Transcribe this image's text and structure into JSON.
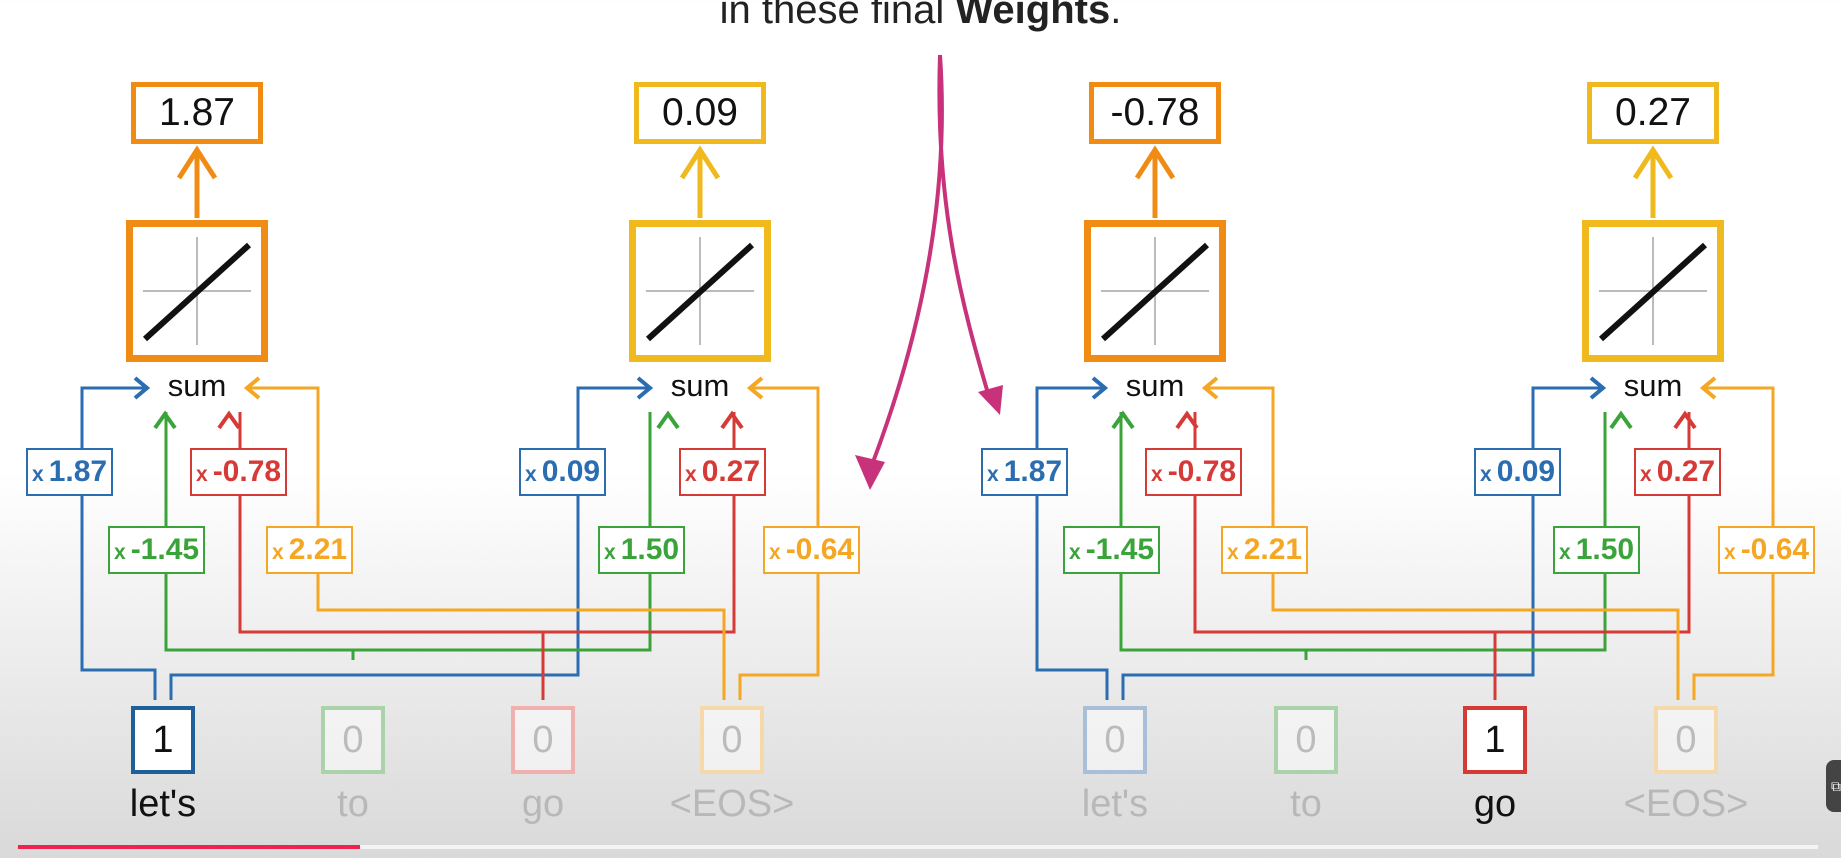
{
  "caption": {
    "prefix": "in these final ",
    "bold": "Weights",
    "suffix": "."
  },
  "colors": {
    "blue": "#2a6db0",
    "green": "#3aa33a",
    "red": "#d63a36",
    "orange": "#f5a623",
    "dark_orange": "#f08c14",
    "gold": "#f0b91e",
    "magenta": "#c8327a"
  },
  "outputs": [
    {
      "value": "1.87",
      "color": "#f08c14"
    },
    {
      "value": "0.09",
      "color": "#f0b91e"
    },
    {
      "value": "-0.78",
      "color": "#f08c14"
    },
    {
      "value": "0.27",
      "color": "#f0b91e"
    }
  ],
  "sum_label": "sum",
  "networks": [
    {
      "weights": {
        "top": [
          {
            "value": "1.87",
            "color": "#2a6db0"
          },
          {
            "value": "-0.78",
            "color": "#d63a36"
          },
          {
            "value": "0.09",
            "color": "#2a6db0"
          },
          {
            "value": "0.27",
            "color": "#d63a36"
          }
        ],
        "bottom": [
          {
            "value": "-1.45",
            "color": "#3aa33a"
          },
          {
            "value": "2.21",
            "color": "#f5a623"
          },
          {
            "value": "1.50",
            "color": "#3aa33a"
          },
          {
            "value": "-0.64",
            "color": "#f5a623"
          }
        ]
      },
      "inputs": [
        {
          "value": "1",
          "word": "let's",
          "active": true
        },
        {
          "value": "0",
          "word": "to",
          "active": false
        },
        {
          "value": "0",
          "word": "go",
          "active": false
        },
        {
          "value": "0",
          "word": "<EOS>",
          "active": false
        }
      ]
    },
    {
      "weights": {
        "top": [
          {
            "value": "1.87",
            "color": "#2a6db0"
          },
          {
            "value": "-0.78",
            "color": "#d63a36"
          },
          {
            "value": "0.09",
            "color": "#2a6db0"
          },
          {
            "value": "0.27",
            "color": "#d63a36"
          }
        ],
        "bottom": [
          {
            "value": "-1.45",
            "color": "#3aa33a"
          },
          {
            "value": "2.21",
            "color": "#f5a623"
          },
          {
            "value": "1.50",
            "color": "#3aa33a"
          },
          {
            "value": "-0.64",
            "color": "#f5a623"
          }
        ]
      },
      "inputs": [
        {
          "value": "0",
          "word": "let's",
          "active": false
        },
        {
          "value": "0",
          "word": "to",
          "active": false
        },
        {
          "value": "1",
          "word": "go",
          "active": true
        },
        {
          "value": "0",
          "word": "<EOS>",
          "active": false
        }
      ]
    }
  ],
  "weight_prefix": "x",
  "video": {
    "progress_fraction": 0.19
  }
}
